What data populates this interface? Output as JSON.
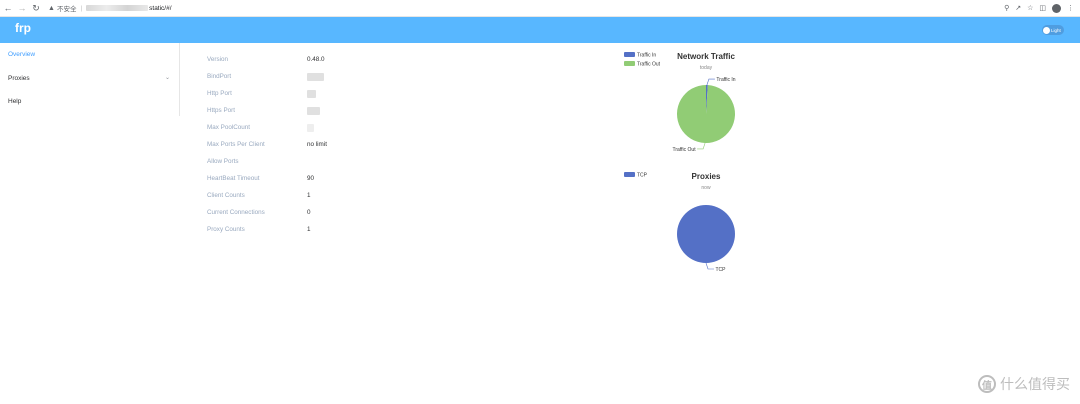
{
  "browser": {
    "back_icon": "arrow-left-icon",
    "forward_icon": "arrow-right-icon",
    "reload_icon": "reload-icon",
    "security_label": "不安全",
    "url_visible": "static/#/",
    "actions": [
      "key-icon",
      "share-icon",
      "star-icon",
      "sidebar-icon",
      "profile-icon",
      "more-icon"
    ]
  },
  "header": {
    "brand": "frp",
    "theme_toggle_label": "Light",
    "bg_color": "#58b7ff"
  },
  "sidebar": {
    "items": [
      {
        "label": "Overview",
        "active": true
      },
      {
        "label": "Proxies",
        "active": false,
        "has_submenu": true
      },
      {
        "label": "Help",
        "active": false
      }
    ]
  },
  "overview": {
    "rows": [
      {
        "label": "Version",
        "value": "0.48.0"
      },
      {
        "label": "BindPort",
        "value": "",
        "redacted": true
      },
      {
        "label": "Http Port",
        "value": "",
        "redacted": true
      },
      {
        "label": "Https Port",
        "value": "",
        "redacted": true
      },
      {
        "label": "Max PoolCount",
        "value": "",
        "redacted": true
      },
      {
        "label": "Max Ports Per Client",
        "value": "no limit"
      },
      {
        "label": "Allow Ports",
        "value": ""
      },
      {
        "label": "HeartBeat Timeout",
        "value": "90"
      },
      {
        "label": "Client Counts",
        "value": "1"
      },
      {
        "label": "Current Connections",
        "value": "0"
      },
      {
        "label": "Proxy Counts",
        "value": "1"
      }
    ]
  },
  "chart_data": [
    {
      "type": "pie",
      "title": "Network Traffic",
      "subtitle": "today",
      "legend_position": "top-left",
      "categories": [
        "Traffic In",
        "Traffic Out"
      ],
      "values": [
        1,
        99
      ],
      "colors": [
        "#5470c6",
        "#91cc75"
      ]
    },
    {
      "type": "pie",
      "title": "Proxies",
      "subtitle": "now",
      "legend_position": "top-left",
      "categories": [
        "TCP"
      ],
      "values": [
        1
      ],
      "colors": [
        "#5470c6"
      ]
    }
  ],
  "watermark": {
    "glyph": "值",
    "text": "什么值得买"
  }
}
